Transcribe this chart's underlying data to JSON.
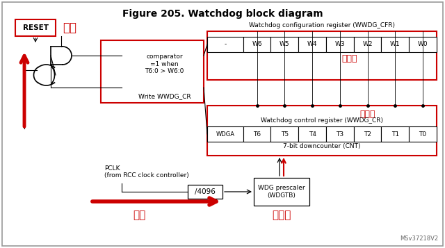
{
  "title": "Figure 205. Watchdog block diagram",
  "bg": "#f0f0f0",
  "white": "#ffffff",
  "red": "#cc0000",
  "black": "#000000",
  "gray_border": "#999999",
  "cfr_label": "Watchdog configuration register (WWDG_CFR)",
  "cfr_bits": [
    "-",
    "W6",
    "W5",
    "W4",
    "W3",
    "W2",
    "W1",
    "W0"
  ],
  "cfr_chinese": "窗口値",
  "cr_label": "Watchdog control register (WWDG_CR)",
  "cr_bits": [
    "WDGA",
    "T6",
    "T5",
    "T4",
    "T3",
    "T2",
    "T1",
    "T0"
  ],
  "cr_sub": "7-bit downcounter (CNT)",
  "cr_chinese": "计数値",
  "reset_label": "RESET",
  "fuwei_label": "复位",
  "comparator_text": "comparator\n=1 when\nT6:0 > W6:0",
  "write_cr_label": "Write WWDG_CR",
  "pclk_label": "PCLK\n(from RCC clock controller)",
  "div_label": "/4096",
  "wdg_label": "WDG prescaler\n(WDGTB)",
  "fenpin_label": "分频",
  "refenpin_label": "再分频",
  "watermark": "MSv37218V2"
}
